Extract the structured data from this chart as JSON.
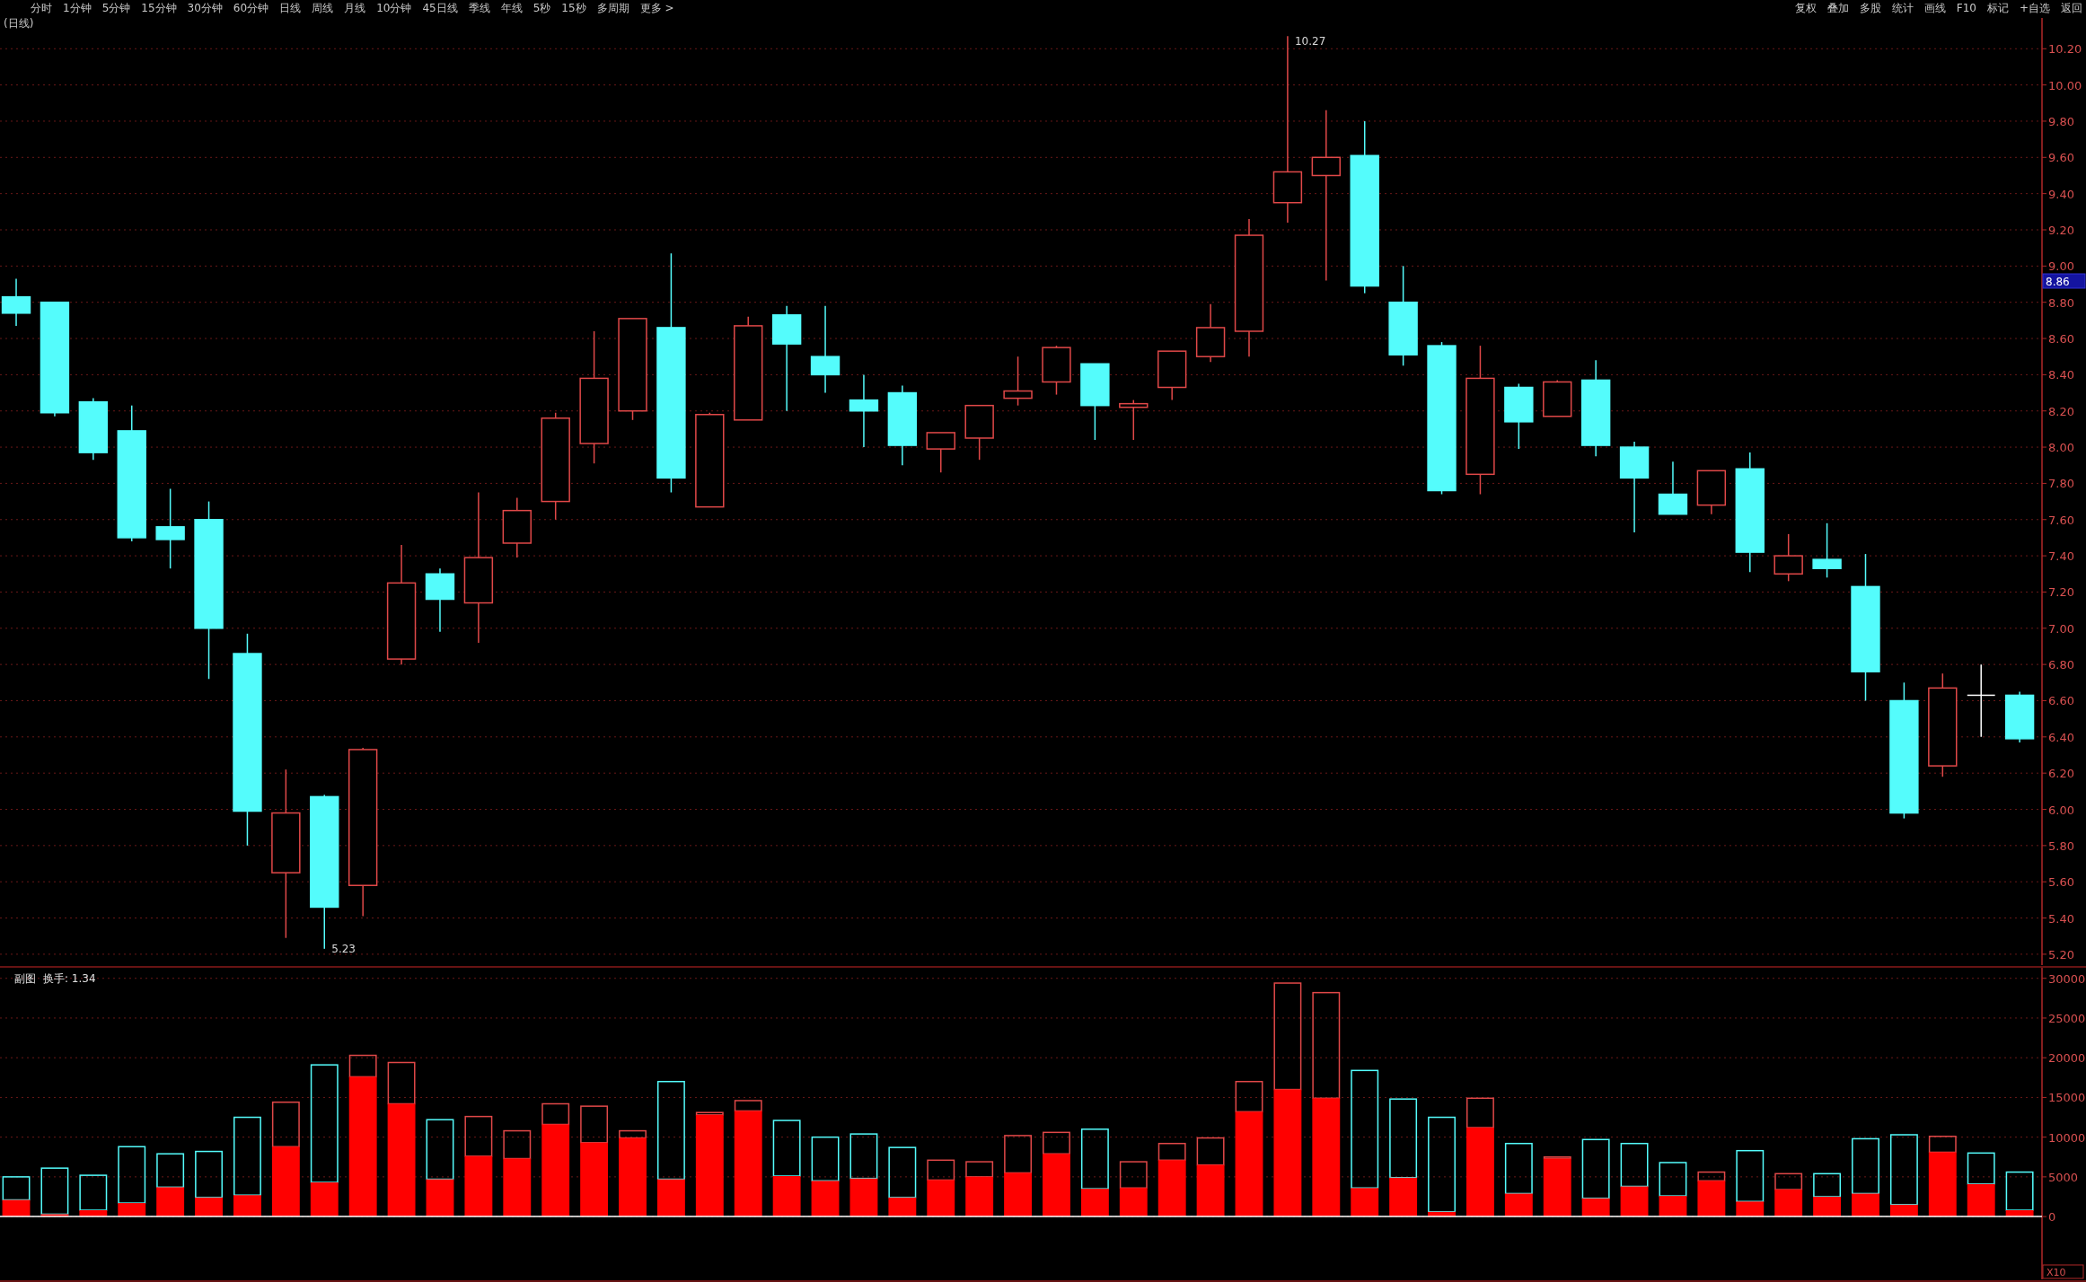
{
  "chart_data": [
    {
      "type": "candlestick",
      "title": "(日线)",
      "categories": [
        null,
        null,
        null,
        null,
        null,
        null,
        null,
        null,
        null,
        null,
        null,
        null,
        null,
        null,
        null,
        null,
        null,
        null,
        null,
        null,
        null,
        null,
        null,
        null,
        null,
        null,
        null,
        null,
        null,
        null,
        null,
        null,
        null,
        null,
        null,
        null,
        null,
        null,
        null,
        null,
        null,
        null,
        null,
        null,
        null,
        null,
        null,
        null,
        null,
        null,
        null,
        null,
        null
      ],
      "ohlc": [
        [
          8.83,
          8.93,
          8.67,
          8.74
        ],
        [
          8.8,
          8.8,
          8.17,
          8.19
        ],
        [
          8.25,
          8.27,
          7.93,
          7.97
        ],
        [
          8.09,
          8.23,
          7.48,
          7.5
        ],
        [
          7.56,
          7.77,
          7.33,
          7.49
        ],
        [
          7.6,
          7.7,
          6.72,
          7.0
        ],
        [
          6.86,
          6.97,
          5.8,
          5.99
        ],
        [
          5.65,
          6.22,
          5.29,
          5.98
        ],
        [
          6.07,
          6.08,
          5.23,
          5.46
        ],
        [
          5.58,
          6.34,
          5.41,
          6.33
        ],
        [
          6.83,
          7.46,
          6.8,
          7.25
        ],
        [
          7.3,
          7.33,
          6.98,
          7.16
        ],
        [
          7.14,
          7.75,
          6.92,
          7.39
        ],
        [
          7.47,
          7.72,
          7.39,
          7.65
        ],
        [
          7.7,
          8.19,
          7.6,
          8.16
        ],
        [
          8.02,
          8.64,
          7.91,
          8.38
        ],
        [
          8.2,
          8.71,
          8.15,
          8.71
        ],
        [
          8.66,
          9.07,
          7.75,
          7.83
        ],
        [
          7.67,
          8.19,
          7.67,
          8.18
        ],
        [
          8.15,
          8.72,
          8.15,
          8.67
        ],
        [
          8.73,
          8.78,
          8.2,
          8.57
        ],
        [
          8.5,
          8.78,
          8.3,
          8.4
        ],
        [
          8.26,
          8.4,
          8.0,
          8.2
        ],
        [
          8.3,
          8.34,
          7.9,
          8.01
        ],
        [
          7.99,
          8.08,
          7.86,
          8.08
        ],
        [
          8.05,
          8.23,
          7.93,
          8.23
        ],
        [
          8.27,
          8.5,
          8.23,
          8.31
        ],
        [
          8.36,
          8.56,
          8.29,
          8.55
        ],
        [
          8.46,
          8.46,
          8.04,
          8.23
        ],
        [
          8.22,
          8.26,
          8.04,
          8.24
        ],
        [
          8.33,
          8.53,
          8.26,
          8.53
        ],
        [
          8.5,
          8.79,
          8.47,
          8.66
        ],
        [
          8.64,
          9.26,
          8.5,
          9.17
        ],
        [
          9.35,
          10.27,
          9.24,
          9.52
        ],
        [
          9.5,
          9.86,
          8.92,
          9.6
        ],
        [
          9.61,
          9.8,
          8.85,
          8.89
        ],
        [
          8.8,
          9.0,
          8.45,
          8.51
        ],
        [
          8.56,
          8.58,
          7.74,
          7.76
        ],
        [
          7.85,
          8.56,
          7.74,
          8.38
        ],
        [
          8.33,
          8.35,
          7.99,
          8.14
        ],
        [
          8.17,
          8.37,
          8.17,
          8.36
        ],
        [
          8.37,
          8.48,
          7.95,
          8.01
        ],
        [
          8.0,
          8.03,
          7.53,
          7.83
        ],
        [
          7.74,
          7.92,
          7.63,
          7.63
        ],
        [
          7.68,
          7.87,
          7.63,
          7.87
        ],
        [
          7.88,
          7.97,
          7.31,
          7.42
        ],
        [
          7.3,
          7.52,
          7.26,
          7.4
        ],
        [
          7.38,
          7.58,
          7.28,
          7.33
        ],
        [
          7.23,
          7.41,
          6.6,
          6.76
        ],
        [
          6.6,
          6.7,
          5.95,
          5.98
        ],
        [
          6.24,
          6.75,
          6.18,
          6.67
        ],
        [
          6.63,
          6.8,
          6.4,
          6.63
        ],
        [
          6.63,
          6.65,
          6.37,
          6.39
        ]
      ],
      "colors": [
        "#54fcfc",
        "#54fcfc",
        "#54fcfc",
        "#54fcfc",
        "#54fcfc",
        "#54fcfc",
        "#54fcfc",
        "#e04848",
        "#54fcfc",
        "#e04848",
        "#e04848",
        "#54fcfc",
        "#e04848",
        "#e04848",
        "#e04848",
        "#e04848",
        "#e04848",
        "#54fcfc",
        "#e04848",
        "#e04848",
        "#54fcfc",
        "#54fcfc",
        "#54fcfc",
        "#54fcfc",
        "#e04848",
        "#e04848",
        "#e04848",
        "#e04848",
        "#54fcfc",
        "#e04848",
        "#e04848",
        "#e04848",
        "#e04848",
        "#e04848",
        "#e04848",
        "#54fcfc",
        "#54fcfc",
        "#54fcfc",
        "#e04848",
        "#54fcfc",
        "#e04848",
        "#54fcfc",
        "#54fcfc",
        "#54fcfc",
        "#e04848",
        "#54fcfc",
        "#e04848",
        "#54fcfc",
        "#54fcfc",
        "#54fcfc",
        "#e04848",
        "#ffffff",
        "#54fcfc"
      ],
      "ylim": [
        5.14,
        10.36
      ],
      "yticks": [
        {
          "value": 5.2,
          "label": "5.20"
        },
        {
          "value": 5.4,
          "label": "5.40"
        },
        {
          "value": 5.6,
          "label": "5.60"
        },
        {
          "value": 5.8,
          "label": "5.80"
        },
        {
          "value": 6.0,
          "label": "6.00"
        },
        {
          "value": 6.2,
          "label": "6.20"
        },
        {
          "value": 6.4,
          "label": "6.40"
        },
        {
          "value": 6.6,
          "label": "6.60"
        },
        {
          "value": 6.8,
          "label": "6.80"
        },
        {
          "value": 7.0,
          "label": "7.00"
        },
        {
          "value": 7.2,
          "label": "7.20"
        },
        {
          "value": 7.4,
          "label": "7.40"
        },
        {
          "value": 7.6,
          "label": "7.60"
        },
        {
          "value": 7.8,
          "label": "7.80"
        },
        {
          "value": 8.0,
          "label": "8.00"
        },
        {
          "value": 8.2,
          "label": "8.20"
        },
        {
          "value": 8.4,
          "label": "8.40"
        },
        {
          "value": 8.6,
          "label": "8.60"
        },
        {
          "value": 8.8,
          "label": "8.80"
        },
        {
          "value": 9.0,
          "label": "9.00"
        },
        {
          "value": 9.2,
          "label": "9.20"
        },
        {
          "value": 9.4,
          "label": "9.40"
        },
        {
          "value": 9.6,
          "label": "9.60"
        },
        {
          "value": 9.8,
          "label": "9.80"
        },
        {
          "value": 10.0,
          "label": "10.00"
        },
        {
          "value": 10.2,
          "label": "10.20"
        }
      ],
      "grid": "y",
      "annotations": [
        "分时",
        "1分钟",
        "5分钟",
        "15分钟",
        "30分钟",
        "60分钟",
        "日线",
        "周线",
        "月线",
        "10分钟",
        "45日线",
        "季线",
        "年线",
        "5秒",
        "15秒",
        "多周期",
        "更多 >",
        "复权",
        "叠加",
        "多股",
        "统计",
        "画线",
        "F10",
        "标记",
        "+自选",
        "返回",
        "10.27",
        "5.23",
        "8.86"
      ]
    },
    {
      "type": "bar",
      "title": "副图",
      "subtitle": "换手: 1.34",
      "stacked": true,
      "categories": [
        null,
        null,
        null,
        null,
        null,
        null,
        null,
        null,
        null,
        null,
        null,
        null,
        null,
        null,
        null,
        null,
        null,
        null,
        null,
        null,
        null,
        null,
        null,
        null,
        null,
        null,
        null,
        null,
        null,
        null,
        null,
        null,
        null,
        null,
        null,
        null,
        null,
        null,
        null,
        null,
        null,
        null,
        null,
        null,
        null,
        null,
        null,
        null,
        null,
        null,
        null,
        null,
        null
      ],
      "series": [
        {
          "color": "#ff0000",
          "values": [
            2100,
            300,
            800,
            1700,
            3700,
            2400,
            2700,
            8800,
            4300,
            17600,
            14200,
            4700,
            7600,
            7300,
            11600,
            9300,
            9900,
            4700,
            12800,
            13300,
            5100,
            4500,
            4800,
            2400,
            4600,
            5000,
            5500,
            7900,
            3500,
            3600,
            7100,
            6500,
            13200,
            16000,
            14900,
            3600,
            4900,
            600,
            11200,
            2900,
            7300,
            2300,
            3800,
            2600,
            4500,
            1900,
            3400,
            2500,
            2900,
            1500,
            8100,
            4100,
            800
          ]
        },
        {
          "colors": [
            "#54fcfc",
            "#54fcfc",
            "#54fcfc",
            "#54fcfc",
            "#54fcfc",
            "#54fcfc",
            "#54fcfc",
            "#e04848",
            "#54fcfc",
            "#e04848",
            "#e04848",
            "#54fcfc",
            "#e04848",
            "#e04848",
            "#e04848",
            "#e04848",
            "#e04848",
            "#54fcfc",
            "#e04848",
            "#e04848",
            "#54fcfc",
            "#54fcfc",
            "#54fcfc",
            "#54fcfc",
            "#e04848",
            "#e04848",
            "#e04848",
            "#e04848",
            "#54fcfc",
            "#e04848",
            "#e04848",
            "#e04848",
            "#e04848",
            "#e04848",
            "#e04848",
            "#54fcfc",
            "#54fcfc",
            "#54fcfc",
            "#e04848",
            "#54fcfc",
            "#e04848",
            "#54fcfc",
            "#54fcfc",
            "#54fcfc",
            "#e04848",
            "#54fcfc",
            "#e04848",
            "#54fcfc",
            "#54fcfc",
            "#54fcfc",
            "#e04848",
            "#54fcfc",
            "#54fcfc"
          ],
          "values": [
            2900,
            5800,
            4400,
            7100,
            4200,
            5800,
            9800,
            5600,
            14800,
            2700,
            5200,
            7500,
            5000,
            3500,
            2600,
            4600,
            900,
            12300,
            300,
            1300,
            7000,
            5500,
            5600,
            6300,
            2500,
            1900,
            4700,
            2700,
            7500,
            3300,
            2100,
            3400,
            3800,
            13400,
            13300,
            14800,
            9900,
            11900,
            3700,
            6300,
            200,
            7400,
            5400,
            4200,
            1100,
            6400,
            2000,
            2900,
            6900,
            8800,
            2000,
            3900,
            4800
          ]
        }
      ],
      "ylim": [
        -7900,
        31100
      ],
      "yticks": [
        0,
        5000,
        10000,
        15000,
        20000,
        25000,
        30000
      ],
      "grid": "y",
      "annotations": [
        "X10"
      ]
    }
  ]
}
